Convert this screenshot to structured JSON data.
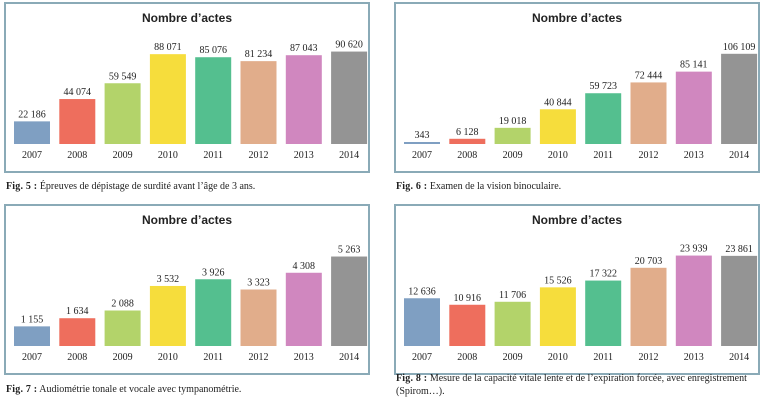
{
  "figures": [
    {
      "fig_label": "Fig. 5 :",
      "caption": "Épreuves de dépistage de surdité avant l’âge de 3 ans."
    },
    {
      "fig_label": "Fig. 6 :",
      "caption": "Examen de la vision binoculaire."
    },
    {
      "fig_label": "Fig. 7 :",
      "caption": "Audiométrie tonale et vocale avec tympanométrie."
    },
    {
      "fig_label": "Fig. 8 :",
      "caption": "Mesure de la capacité vitale lente et de l’expiration forcée, avec enregistrement (Spirom…)."
    }
  ],
  "colors": [
    "#7f9fc2",
    "#ee6e5d",
    "#b3d36a",
    "#f6dd3c",
    "#54bf8f",
    "#e1ad8b",
    "#d087bf",
    "#949494"
  ],
  "chart_data": [
    {
      "type": "bar",
      "title": "Nombre d’actes",
      "categories": [
        "2007",
        "2008",
        "2009",
        "2010",
        "2011",
        "2012",
        "2013",
        "2014"
      ],
      "values": [
        22186,
        44074,
        59549,
        88071,
        85076,
        81234,
        87043,
        90620
      ],
      "value_labels": [
        "22 186",
        "44 074",
        "59 549",
        "88 071",
        "85 076",
        "81 234",
        "87 043",
        "90 620"
      ],
      "ylim": [
        0,
        100000
      ],
      "grid": false
    },
    {
      "type": "bar",
      "title": "Nombre d’actes",
      "categories": [
        "2007",
        "2008",
        "2009",
        "2010",
        "2011",
        "2012",
        "2013",
        "2014"
      ],
      "values": [
        343,
        6128,
        19018,
        40844,
        59723,
        72444,
        85141,
        106109
      ],
      "value_labels": [
        "343",
        "6 128",
        "19 018",
        "40 844",
        "59 723",
        "72 444",
        "85 141",
        "106 109"
      ],
      "ylim": [
        0,
        120000
      ],
      "grid": false
    },
    {
      "type": "bar",
      "title": "Nombre d’actes",
      "categories": [
        "2007",
        "2008",
        "2009",
        "2010",
        "2011",
        "2012",
        "2013",
        "2014"
      ],
      "values": [
        1155,
        1634,
        2088,
        3532,
        3926,
        3323,
        4308,
        5263
      ],
      "value_labels": [
        "1 155",
        "1 634",
        "2 088",
        "3 532",
        "3 926",
        "3 323",
        "4 308",
        "5 263"
      ],
      "ylim": [
        0,
        6000
      ],
      "grid": false
    },
    {
      "type": "bar",
      "title": "Nombre d’actes",
      "categories": [
        "2007",
        "2008",
        "2009",
        "2010",
        "2011",
        "2012",
        "2013",
        "2014"
      ],
      "values": [
        12636,
        10916,
        11706,
        15526,
        17322,
        20703,
        23939,
        23861
      ],
      "value_labels": [
        "12 636",
        "10 916",
        "11 706",
        "15 526",
        "17 322",
        "20 703",
        "23 939",
        "23 861"
      ],
      "ylim": [
        0,
        27000
      ],
      "grid": false
    }
  ]
}
